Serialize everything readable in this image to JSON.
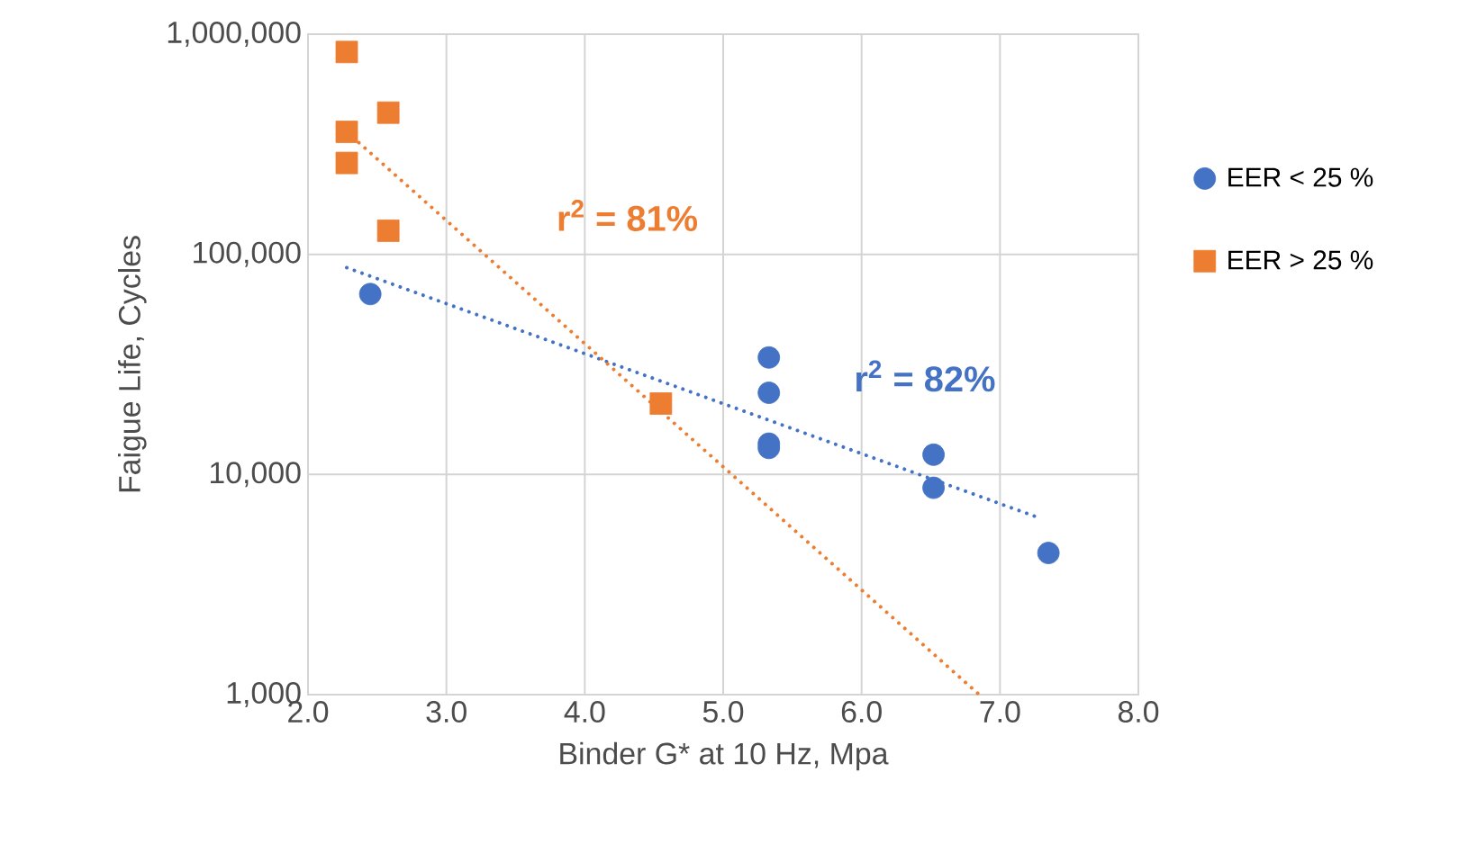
{
  "chart_data": {
    "type": "scatter",
    "xlabel": "Binder G* at 10 Hz, Mpa",
    "ylabel": "Faigue Life, Cycles",
    "xlim": [
      2,
      8
    ],
    "xticks": [
      {
        "value": 2,
        "label": "2.0"
      },
      {
        "value": 3,
        "label": "3.0"
      },
      {
        "value": 4,
        "label": "4.0"
      },
      {
        "value": 5,
        "label": "5.0"
      },
      {
        "value": 6,
        "label": "6.0"
      },
      {
        "value": 7,
        "label": "7.0"
      },
      {
        "value": 8,
        "label": "8.0"
      }
    ],
    "ylim": [
      1000,
      1000000
    ],
    "yticks": [
      {
        "value": 1000,
        "label": "1,000"
      },
      {
        "value": 10000,
        "label": "10,000"
      },
      {
        "value": 100000,
        "label": "100,000"
      },
      {
        "value": 1000000,
        "label": "1,000,000"
      }
    ],
    "log": "y",
    "grid": true,
    "legend": "right",
    "annotations": [
      "r$^{2}$ = 81%",
      "r$^{2}$ = 82%"
    ],
    "series": [
      {
        "name": "EER < 25 %",
        "color": "#4472c4",
        "marker": "circle",
        "x": [
          2.45,
          5.33,
          5.33,
          5.33,
          5.33,
          6.52,
          6.52,
          7.35
        ],
        "values": [
          66000,
          34000,
          23500,
          13800,
          13200,
          12300,
          8700,
          4400
        ]
      },
      {
        "name": "EER > 25 %",
        "color": "#ed7d31",
        "marker": "square",
        "x": [
          2.28,
          2.28,
          2.28,
          2.58,
          2.58,
          4.55
        ],
        "values": [
          830000,
          360000,
          260000,
          440000,
          128000,
          21000
        ]
      },
      {
        "type": "line",
        "color": "#4472c4",
        "line_style": "dotted",
        "marker": "none",
        "x": [
          2.28,
          7.3
        ],
        "values": [
          87000,
          6300
        ]
      },
      {
        "type": "line",
        "color": "#ed7d31",
        "line_style": "dotted",
        "marker": "none",
        "x": [
          2.28,
          6.85
        ],
        "values": [
          360000,
          1000
        ]
      }
    ]
  }
}
